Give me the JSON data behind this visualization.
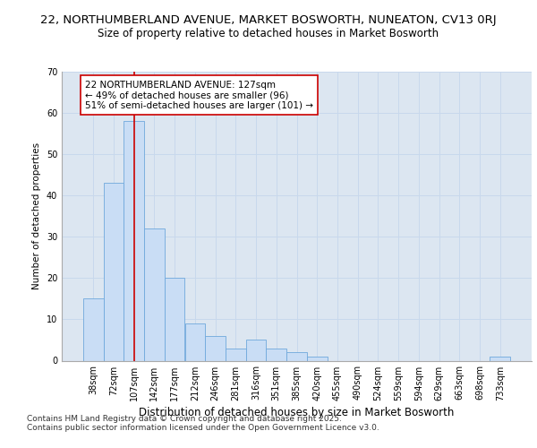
{
  "title": "22, NORTHUMBERLAND AVENUE, MARKET BOSWORTH, NUNEATON, CV13 0RJ",
  "subtitle": "Size of property relative to detached houses in Market Bosworth",
  "xlabel": "Distribution of detached houses by size in Market Bosworth",
  "ylabel": "Number of detached properties",
  "bar_values": [
    15,
    43,
    58,
    32,
    20,
    9,
    6,
    3,
    5,
    3,
    2,
    1,
    0,
    0,
    0,
    0,
    0,
    0,
    0,
    0,
    1
  ],
  "categories": [
    "38sqm",
    "72sqm",
    "107sqm",
    "142sqm",
    "177sqm",
    "212sqm",
    "246sqm",
    "281sqm",
    "316sqm",
    "351sqm",
    "385sqm",
    "420sqm",
    "455sqm",
    "490sqm",
    "524sqm",
    "559sqm",
    "594sqm",
    "629sqm",
    "663sqm",
    "698sqm",
    "733sqm"
  ],
  "bar_color": "#c9ddf5",
  "bar_edge_color": "#6fa8dc",
  "grid_color": "#c8d8ec",
  "background_color": "#dce6f1",
  "vline_x": 2,
  "vline_color": "#cc0000",
  "annotation_text": "22 NORTHUMBERLAND AVENUE: 127sqm\n← 49% of detached houses are smaller (96)\n51% of semi-detached houses are larger (101) →",
  "annotation_box_color": "white",
  "annotation_box_edge": "#cc0000",
  "ylim": [
    0,
    70
  ],
  "yticks": [
    0,
    10,
    20,
    30,
    40,
    50,
    60,
    70
  ],
  "footer": "Contains HM Land Registry data © Crown copyright and database right 2025.\nContains public sector information licensed under the Open Government Licence v3.0.",
  "title_fontsize": 9.5,
  "subtitle_fontsize": 8.5,
  "xlabel_fontsize": 8.5,
  "ylabel_fontsize": 7.5,
  "tick_fontsize": 7,
  "annotation_fontsize": 7.5,
  "footer_fontsize": 6.5
}
